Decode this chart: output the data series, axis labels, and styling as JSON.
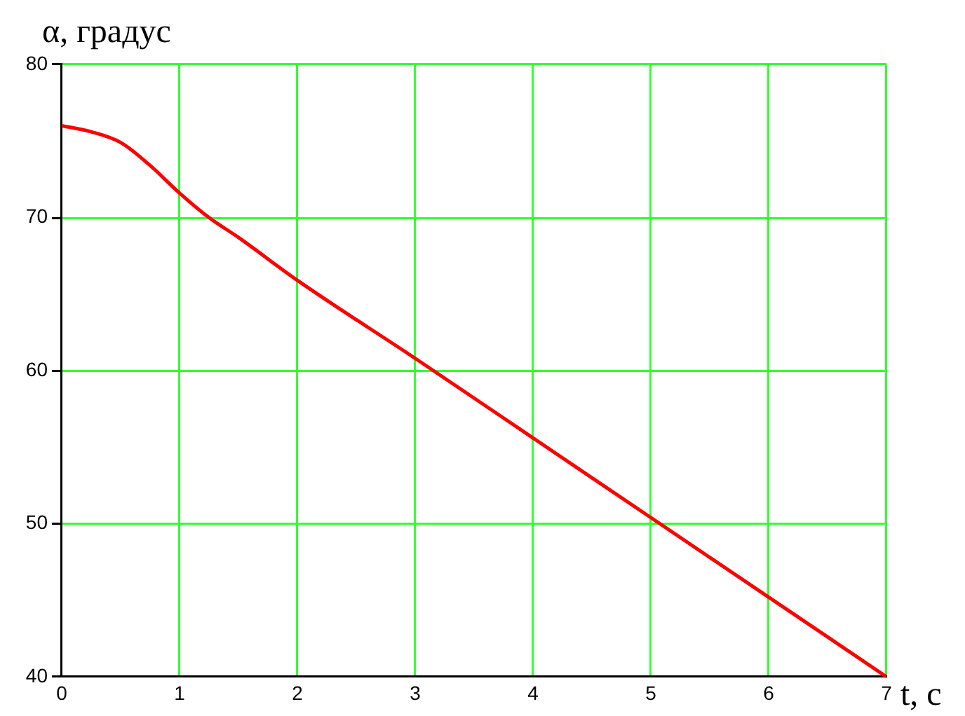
{
  "chart_data": {
    "type": "line",
    "xlabel": "t, с",
    "ylabel": "α, градус",
    "x": [
      0,
      0.25,
      0.5,
      0.75,
      1,
      1.25,
      1.5,
      2,
      3,
      4,
      5,
      6,
      7
    ],
    "series": [
      {
        "color": "#ff0000",
        "values": [
          76,
          75.6,
          74.9,
          73.4,
          71.6,
          70,
          68.7,
          65.9,
          60.8,
          55.6,
          50.4,
          45.2,
          40
        ]
      }
    ],
    "xlim": [
      0,
      7
    ],
    "xticks": [
      0,
      1,
      2,
      3,
      4,
      5,
      6,
      7
    ],
    "ylim": [
      40,
      80
    ],
    "yticks": [
      40,
      50,
      60,
      70,
      80
    ],
    "grid": true
  }
}
